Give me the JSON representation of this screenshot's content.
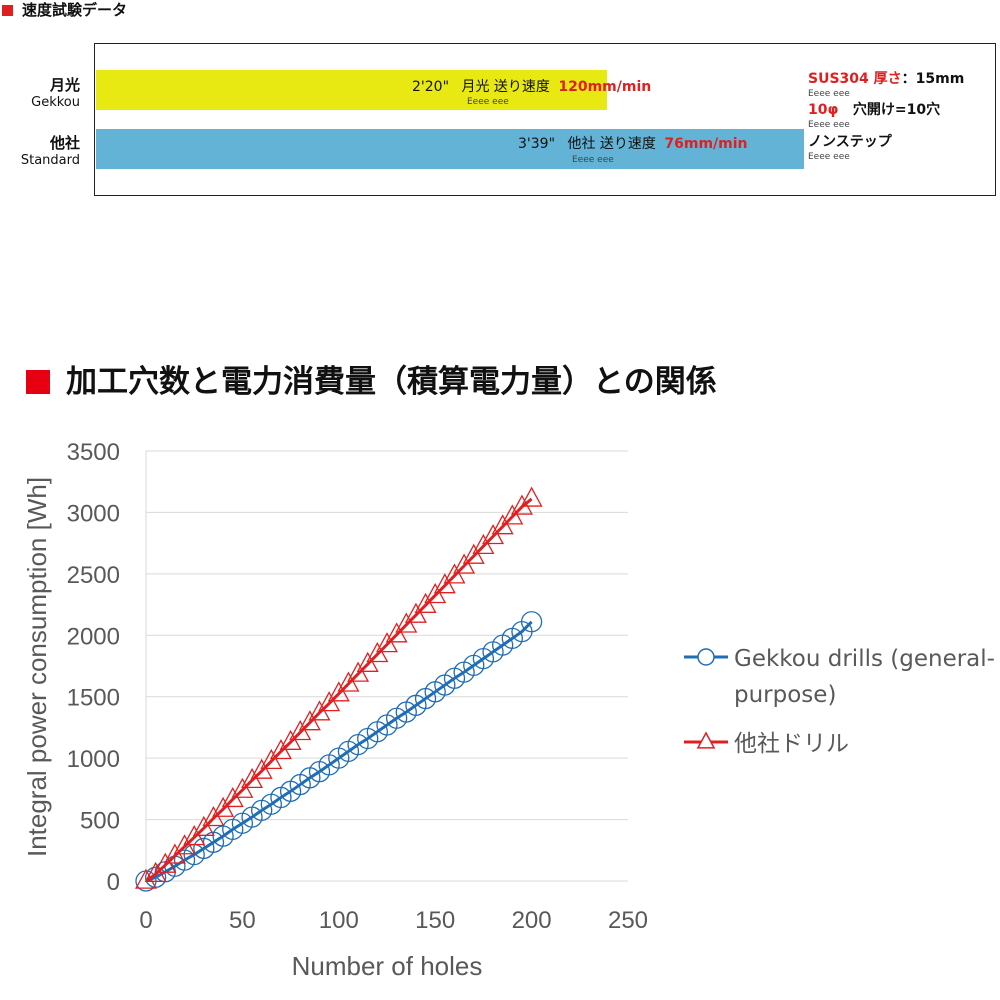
{
  "speed_section": {
    "title": "速度試験データ",
    "rows": [
      {
        "name": "月光",
        "sub": "Gekkou",
        "time": "2'20\"",
        "label": "月光 送り速度",
        "speed": "120mm/min",
        "eee": "Eeee eee",
        "bar_fraction": 0.57
      },
      {
        "name": "他社",
        "sub": "Standard",
        "time": "3'39\"",
        "label": "他社 送り速度",
        "speed": "76mm/min",
        "eee": "Eeee eee",
        "bar_fraction": 0.79
      }
    ],
    "conditions": {
      "material": "SUS304 厚さ",
      "thickness": "：15mm",
      "diameter": "10φ",
      "holes": "穴開け=10穴",
      "step": "ノンステップ",
      "eee": "Eeee eee"
    }
  },
  "chart_section": {
    "title": "加工穴数と電力消費量（積算電力量）との関係"
  },
  "chart_data": {
    "type": "line",
    "xlabel": "Number of holes",
    "ylabel": "Integral power consumption [Wh]",
    "xlim": [
      0,
      250
    ],
    "ylim": [
      0,
      3500
    ],
    "xticks": [
      0,
      50,
      100,
      150,
      200,
      250
    ],
    "yticks": [
      0,
      500,
      1000,
      1500,
      2000,
      2500,
      3000,
      3500
    ],
    "grid": true,
    "legend_position": "right",
    "series": [
      {
        "name": "Gekkou drills (general-purpose)",
        "legend_lines": [
          "Gekkou drills (general-",
          "purpose)"
        ],
        "color": "#1f6db5",
        "marker": "circle",
        "x": [
          0,
          5,
          10,
          15,
          20,
          25,
          30,
          35,
          40,
          45,
          50,
          55,
          60,
          65,
          70,
          75,
          80,
          85,
          90,
          95,
          100,
          105,
          110,
          115,
          120,
          125,
          130,
          135,
          140,
          145,
          150,
          155,
          160,
          165,
          170,
          175,
          180,
          185,
          190,
          195,
          200
        ],
        "y": [
          0,
          30,
          75,
          120,
          170,
          215,
          265,
          315,
          365,
          420,
          470,
          520,
          575,
          625,
          680,
          730,
          785,
          840,
          890,
          945,
          1000,
          1055,
          1110,
          1160,
          1215,
          1270,
          1325,
          1375,
          1430,
          1485,
          1540,
          1595,
          1650,
          1700,
          1755,
          1810,
          1865,
          1920,
          1975,
          2030,
          2110
        ]
      },
      {
        "name": "他社ドリル",
        "legend_lines": [
          "他社ドリル"
        ],
        "color": "#e02020",
        "marker": "triangle",
        "x": [
          0,
          5,
          10,
          15,
          20,
          25,
          30,
          35,
          40,
          45,
          50,
          55,
          60,
          65,
          70,
          75,
          80,
          85,
          90,
          95,
          100,
          105,
          110,
          115,
          120,
          125,
          130,
          135,
          140,
          145,
          150,
          155,
          160,
          165,
          170,
          175,
          180,
          185,
          190,
          195,
          200
        ],
        "y": [
          0,
          55,
          130,
          205,
          280,
          355,
          430,
          510,
          585,
          665,
          740,
          820,
          895,
          975,
          1055,
          1130,
          1210,
          1290,
          1370,
          1445,
          1525,
          1605,
          1685,
          1765,
          1845,
          1925,
          2005,
          2085,
          2165,
          2245,
          2325,
          2405,
          2485,
          2565,
          2645,
          2725,
          2805,
          2885,
          2965,
          3045,
          3110
        ]
      }
    ]
  }
}
